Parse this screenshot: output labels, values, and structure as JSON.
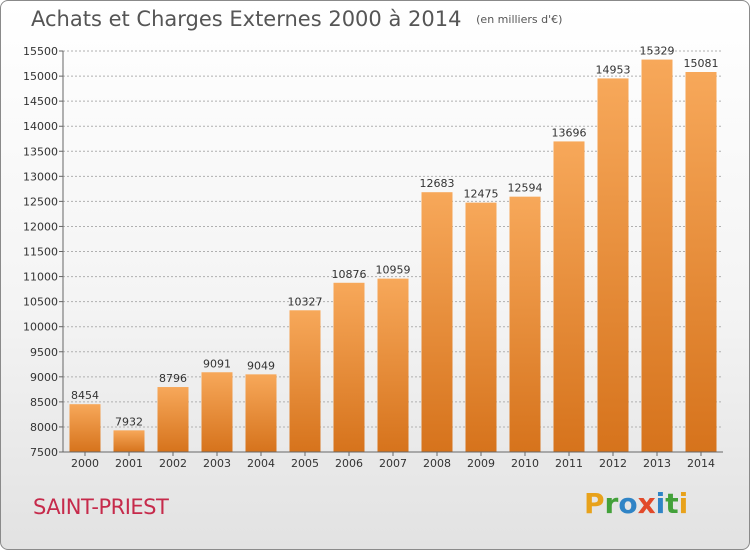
{
  "header": {
    "title": "Achats et Charges Externes 2000 à 2014",
    "subtitle": "(en milliers d'€)"
  },
  "footer": {
    "city": "SAINT-PRIEST",
    "logo_letters": [
      "P",
      "r",
      "o",
      "x",
      "i",
      "t",
      "i"
    ],
    "logo_colors": [
      "#e8a21b",
      "#43a13a",
      "#2f84c6",
      "#e24a2a",
      "#2f84c6",
      "#43a13a",
      "#e8a21b"
    ]
  },
  "colors": {
    "bar_light": "#f7a85a",
    "bar_dark": "#d6731c",
    "grid": "#b0b0b0",
    "title": "#555555",
    "city": "#c62a4b"
  },
  "chart_data": {
    "type": "bar",
    "categories": [
      "2000",
      "2001",
      "2002",
      "2003",
      "2004",
      "2005",
      "2006",
      "2007",
      "2008",
      "2009",
      "2010",
      "2011",
      "2012",
      "2013",
      "2014"
    ],
    "values": [
      8454,
      7932,
      8796,
      9091,
      9049,
      10327,
      10876,
      10959,
      12683,
      12475,
      12594,
      13696,
      14953,
      15329,
      15081
    ],
    "title": "Achats et Charges Externes 2000 à 2014",
    "ylim": [
      7500,
      15500
    ],
    "yticks": [
      7500,
      8000,
      8500,
      9000,
      9500,
      10000,
      10500,
      11000,
      11500,
      12000,
      12500,
      13000,
      13500,
      14000,
      14500,
      15000,
      15500
    ],
    "grid": true,
    "data_labels": true
  }
}
